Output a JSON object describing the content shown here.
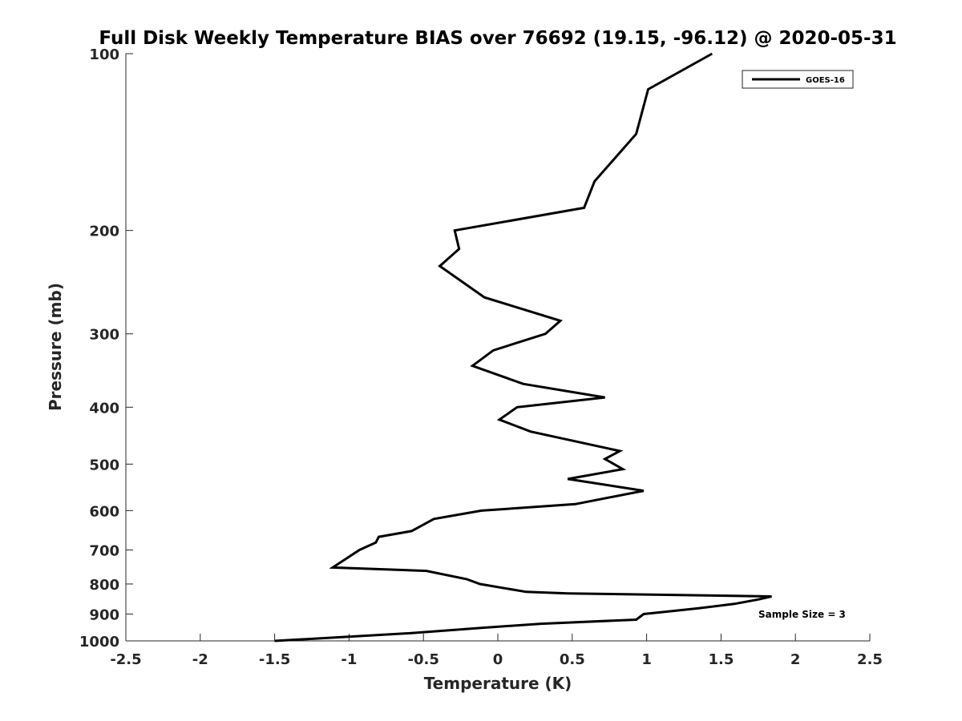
{
  "chart_data": {
    "type": "line",
    "title": "Full Disk Weekly Temperature BIAS over 76692 (19.15, -96.12) @ 2020-05-31",
    "xlabel": "Temperature (K)",
    "ylabel": "Pressure (mb)",
    "xlim": [
      -2.5,
      2.5
    ],
    "ylim": [
      1000,
      100
    ],
    "yscale": "log",
    "x_ticks": [
      "-2.5",
      "-2",
      "-1.5",
      "-1",
      "-0.5",
      "0",
      "0.5",
      "1",
      "1.5",
      "2",
      "2.5"
    ],
    "x_tick_values": [
      -2.5,
      -2,
      -1.5,
      -1,
      -0.5,
      0,
      0.5,
      1,
      1.5,
      2,
      2.5
    ],
    "y_ticks": [
      "100",
      "200",
      "300",
      "400",
      "500",
      "600",
      "700",
      "800",
      "900",
      "1000"
    ],
    "y_tick_values": [
      100,
      200,
      300,
      400,
      500,
      600,
      700,
      800,
      900,
      1000
    ],
    "grid": false,
    "legend_position": "top-right",
    "annotation": "Sample Size = 3",
    "series": [
      {
        "name": "GOES-16",
        "color": "#000000",
        "x": [
          1.44,
          1.01,
          0.93,
          0.65,
          0.58,
          -0.29,
          -0.26,
          -0.39,
          -0.09,
          0.42,
          0.32,
          -0.03,
          -0.17,
          0.17,
          0.72,
          0.13,
          0.01,
          0.22,
          0.82,
          0.72,
          0.84,
          0.47,
          0.98,
          0.52,
          -0.11,
          -0.43,
          -0.58,
          -0.8,
          -0.82,
          -0.93,
          -1.11,
          -0.48,
          -0.21,
          -0.12,
          0.19,
          0.47,
          1.84,
          1.75,
          1.59,
          1.35,
          0.98,
          0.93,
          0.29,
          -0.11,
          -0.58,
          -1.5
        ],
        "y": [
          100,
          115,
          137,
          165,
          183,
          200,
          215,
          230,
          260,
          285,
          300,
          320,
          340,
          365,
          385,
          400,
          420,
          440,
          475,
          490,
          510,
          530,
          555,
          585,
          600,
          620,
          650,
          665,
          680,
          700,
          750,
          760,
          785,
          800,
          825,
          830,
          840,
          850,
          865,
          880,
          900,
          920,
          935,
          950,
          970,
          1000
        ]
      }
    ]
  }
}
